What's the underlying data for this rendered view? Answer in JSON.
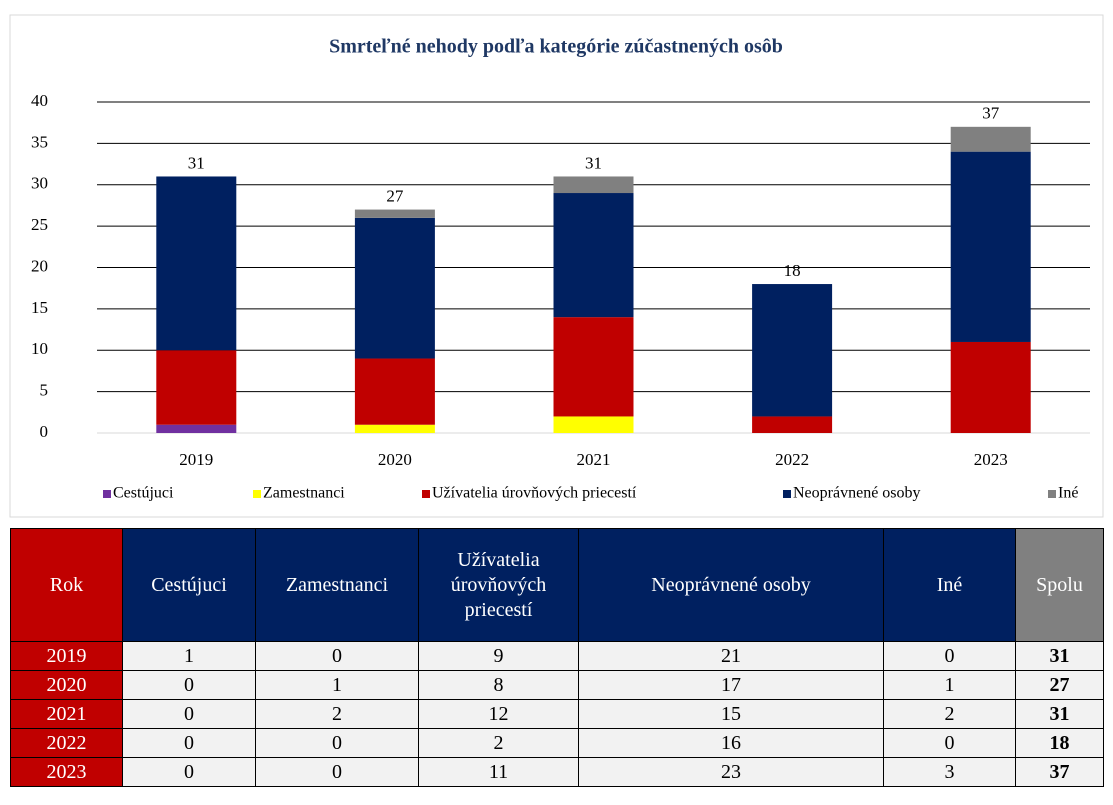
{
  "chart_data": {
    "type": "stacked-bar",
    "title": "Smrteľné nehody podľa kategórie zúčastnených osôb",
    "categories": [
      "2019",
      "2020",
      "2021",
      "2022",
      "2023"
    ],
    "series": [
      {
        "name": "Cestújuci",
        "color": "#7030a0",
        "values": [
          1,
          0,
          0,
          0,
          0
        ]
      },
      {
        "name": "Zamestnanci",
        "color": "#ffff00",
        "values": [
          0,
          1,
          2,
          0,
          0
        ]
      },
      {
        "name": "Užívatelia úrovňových priecestí",
        "color": "#c00000",
        "values": [
          9,
          8,
          12,
          2,
          11
        ]
      },
      {
        "name": "Neoprávnené osoby",
        "color": "#002060",
        "values": [
          21,
          17,
          15,
          16,
          23
        ]
      },
      {
        "name": "Iné",
        "color": "#808080",
        "values": [
          0,
          1,
          2,
          0,
          3
        ]
      }
    ],
    "totals": [
      31,
      27,
      31,
      18,
      37
    ],
    "ylim": [
      0,
      40
    ],
    "yticks": [
      0,
      5,
      10,
      15,
      20,
      25,
      30,
      35,
      40
    ],
    "grid": true,
    "legend": "bottom"
  },
  "table": {
    "header": [
      "Rok",
      "Cestújuci",
      "Zamestnanci",
      "Užívatelia úrovňových priecestí",
      "Neoprávnené osoby",
      "Iné",
      "Spolu"
    ],
    "rows": [
      [
        "2019",
        "1",
        "0",
        "9",
        "21",
        "0",
        "31"
      ],
      [
        "2020",
        "0",
        "1",
        "8",
        "17",
        "1",
        "27"
      ],
      [
        "2021",
        "0",
        "2",
        "12",
        "15",
        "2",
        "31"
      ],
      [
        "2022",
        "0",
        "0",
        "2",
        "16",
        "0",
        "18"
      ],
      [
        "2023",
        "0",
        "0",
        "11",
        "23",
        "3",
        "37"
      ]
    ]
  }
}
